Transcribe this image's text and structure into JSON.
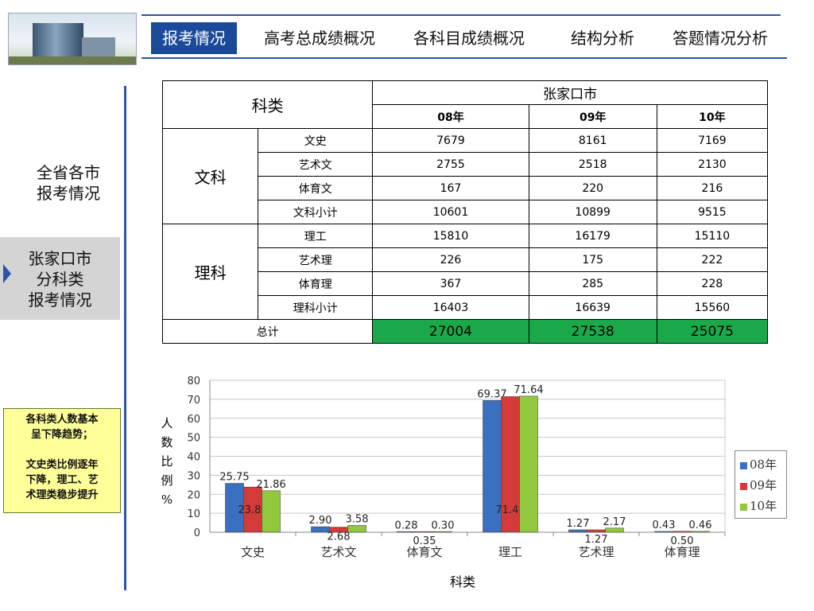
{
  "nav": {
    "tabs": [
      "报考情况",
      "高考总成绩概况",
      "各科目成绩概况",
      "结构分析",
      "答题情况分析"
    ]
  },
  "sidebar": {
    "item1": [
      "全省各市",
      "报考情况"
    ],
    "item2": [
      "张家口市",
      "分科类",
      "报考情况"
    ]
  },
  "note": {
    "lines": [
      "各科类人数基本",
      "呈下降趋势；",
      "",
      "文史类比例逐年",
      "下降，理工、艺",
      "术理类稳步提升"
    ]
  },
  "table": {
    "corner": "科类",
    "city": "张家口市",
    "years": [
      "08年",
      "09年",
      "10年"
    ],
    "groups": [
      {
        "name": "文科",
        "rows": [
          {
            "label": "文史",
            "values": [
              "7679",
              "8161",
              "7169"
            ]
          },
          {
            "label": "艺术文",
            "values": [
              "2755",
              "2518",
              "2130"
            ]
          },
          {
            "label": "体育文",
            "values": [
              "167",
              "220",
              "216"
            ]
          },
          {
            "label": "文科小计",
            "values": [
              "10601",
              "10899",
              "9515"
            ]
          }
        ]
      },
      {
        "name": "理科",
        "rows": [
          {
            "label": "理工",
            "values": [
              "15810",
              "16179",
              "15110"
            ]
          },
          {
            "label": "艺术理",
            "values": [
              "226",
              "175",
              "222"
            ]
          },
          {
            "label": "体育理",
            "values": [
              "367",
              "285",
              "228"
            ]
          },
          {
            "label": "理科小计",
            "values": [
              "16403",
              "16639",
              "15560"
            ]
          }
        ]
      }
    ],
    "total": {
      "label": "总计",
      "values": [
        "27004",
        "27538",
        "25075"
      ]
    }
  },
  "chart_data": {
    "type": "bar",
    "categories": [
      "文史",
      "艺术文",
      "体育文",
      "理工",
      "艺术理",
      "体育理"
    ],
    "series": [
      {
        "name": "08年",
        "values": [
          25.75,
          2.9,
          0.28,
          69.37,
          1.27,
          0.43
        ],
        "labels": [
          "25.75",
          "2.90",
          "0.28",
          "69.37",
          "1.27",
          "0.43"
        ],
        "color": "#3b6fbf"
      },
      {
        "name": "09年",
        "values": [
          23.8,
          2.68,
          0.35,
          71.4,
          1.27,
          0.5
        ],
        "labels": [
          "23.80",
          "2.68",
          "0.35",
          "71.40",
          "1.27",
          "0.50"
        ],
        "color": "#d43a3a"
      },
      {
        "name": "10年",
        "values": [
          21.86,
          3.58,
          0.3,
          71.64,
          2.17,
          0.46
        ],
        "labels": [
          "21.86",
          "3.58",
          "0.30",
          "71.64",
          "2.17",
          "0.46"
        ],
        "color": "#92c83e"
      }
    ],
    "xlabel": "科类",
    "ylabel": "人数比例%",
    "ylim": [
      0,
      80
    ],
    "yticks": [
      0,
      10,
      20,
      30,
      40,
      50,
      60,
      70,
      80
    ],
    "grid": true,
    "legend": "right"
  }
}
